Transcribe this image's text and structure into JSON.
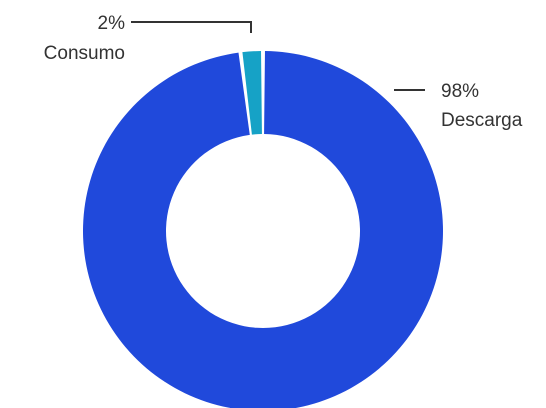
{
  "chart_data": {
    "type": "pie",
    "variant": "donut",
    "slices": [
      {
        "label": "Consumo",
        "value": 2,
        "value_label": "2%",
        "color": "#16a2c6"
      },
      {
        "label": "Descarga",
        "value": 98,
        "value_label": "98%",
        "color": "#2049db"
      }
    ],
    "title": "",
    "legend": "none",
    "label_placement": "outside with leader lines"
  }
}
